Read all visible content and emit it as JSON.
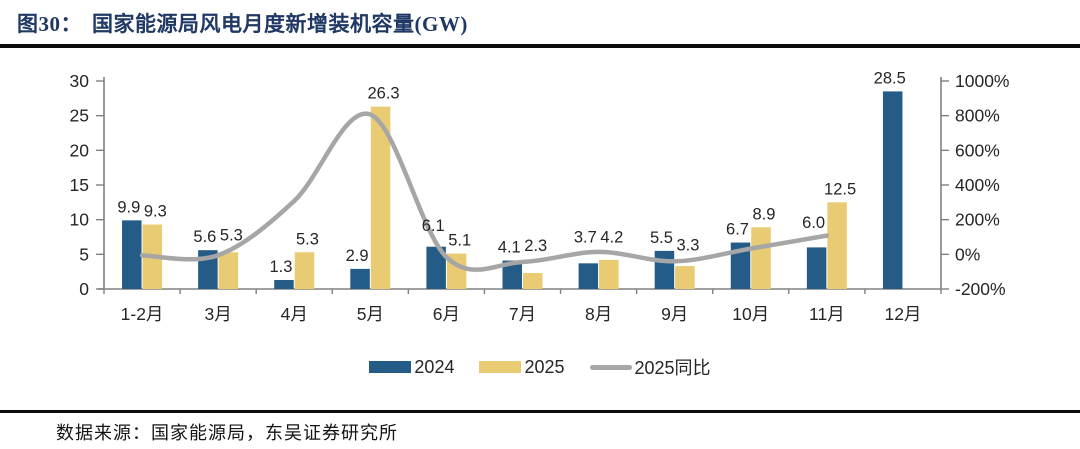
{
  "figure": {
    "label": "图30：",
    "title": "国家能源局风电月度新增装机容量(GW)"
  },
  "footer": {
    "source": "数据来源：国家能源局，东吴证券研究所"
  },
  "colors": {
    "bar_2024": "#245C87",
    "bar_2025": "#E8CB72",
    "line_yoy": "#A6A6A6",
    "title_navy": "#1F3864",
    "axis_gray": "#808080",
    "text_dark": "#262626",
    "rule_black": "#0c0c0c"
  },
  "chart_data": {
    "type": "bar",
    "title": "国家能源局风电月度新增装机容量(GW)",
    "categories": [
      "1-2月",
      "3月",
      "4月",
      "5月",
      "6月",
      "7月",
      "8月",
      "9月",
      "10月",
      "11月",
      "12月"
    ],
    "series": [
      {
        "name": "2024",
        "kind": "bar",
        "axis": "left",
        "color_key": "bar_2024",
        "values": [
          9.9,
          5.6,
          1.3,
          2.9,
          6.1,
          4.1,
          3.7,
          5.5,
          6.7,
          6.0,
          28.5
        ]
      },
      {
        "name": "2025",
        "kind": "bar",
        "axis": "left",
        "color_key": "bar_2025",
        "values": [
          9.3,
          5.3,
          5.3,
          26.3,
          5.1,
          2.3,
          4.2,
          3.3,
          8.9,
          12.5,
          null
        ]
      },
      {
        "name": "2025同比",
        "kind": "line",
        "axis": "right",
        "color_key": "line_yoy",
        "unit": "%",
        "values": [
          -6,
          -5,
          308,
          807,
          -16,
          -44,
          14,
          -40,
          33,
          108,
          null
        ]
      }
    ],
    "left_axis": {
      "min": 0,
      "max": 30,
      "ticks": [
        0,
        5,
        10,
        15,
        20,
        25,
        30
      ]
    },
    "right_axis": {
      "min": -200,
      "max": 1000,
      "ticks": [
        -200,
        0,
        200,
        400,
        600,
        800,
        1000
      ],
      "suffix": "%"
    },
    "value_label_decimals": 1,
    "legend_position": "bottom",
    "grid": false
  }
}
